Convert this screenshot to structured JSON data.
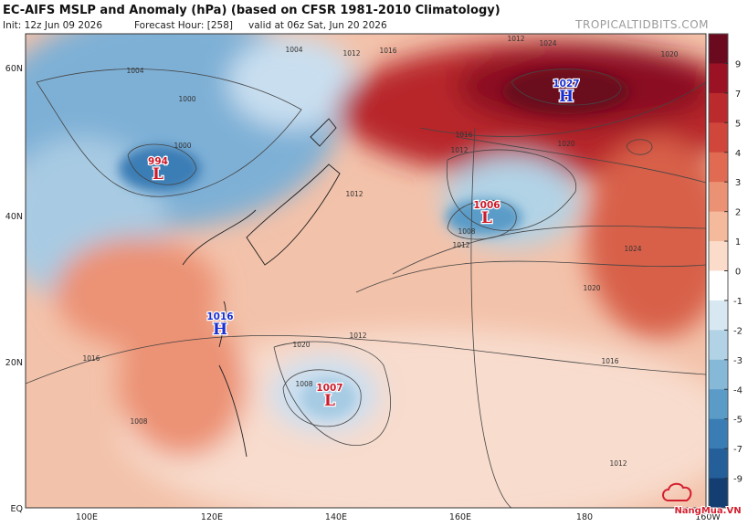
{
  "header": {
    "title": "EC-AIFS MSLP and Anomaly (hPa) (based on CFSR 1981-2010 Climatology)",
    "init": "Init: 12z Jun 09 2026",
    "forecast_hour": "Forecast Hour: [258]",
    "valid": "valid at 06z Sat, Jun 20 2026",
    "watermark": "TROPICALTIDBITS.COM"
  },
  "map": {
    "lat_labels": [
      "60N",
      "40N",
      "20N",
      "EQ"
    ],
    "lon_labels": [
      "100E",
      "120E",
      "140E",
      "160E",
      "180",
      "160W"
    ],
    "pressure_centers": [
      {
        "value": "994",
        "symbol": "L"
      },
      {
        "value": "1027",
        "symbol": "H"
      },
      {
        "value": "1006",
        "symbol": "L"
      },
      {
        "value": "1016",
        "symbol": "H"
      },
      {
        "value": "1007",
        "symbol": "L"
      }
    ],
    "contour_labels": [
      "1012",
      "1016",
      "1020",
      "1024",
      "1020",
      "1016",
      "1012",
      "1008",
      "1012",
      "1016",
      "1020",
      "1024",
      "1004",
      "1004",
      "1000",
      "1000",
      "1008",
      "1012",
      "1012",
      "1008",
      "1012",
      "1020",
      "1016",
      "1012"
    ]
  },
  "colorbar": {
    "ticks": [
      9,
      7,
      5,
      4,
      3,
      2,
      1,
      0,
      -1,
      -2,
      -3,
      -4,
      -5,
      -7,
      -9
    ],
    "colors": [
      "#6b0a1e",
      "#9a1224",
      "#bb2a2c",
      "#d1463b",
      "#e06a52",
      "#ec9274",
      "#f5b99b",
      "#fbdccb",
      "#ffffff",
      "#d8e8f2",
      "#b2d3e6",
      "#86b9d8",
      "#5a9bc7",
      "#3a7db5",
      "#245f9a",
      "#143e72"
    ]
  },
  "logo": "NangMua.VN"
}
